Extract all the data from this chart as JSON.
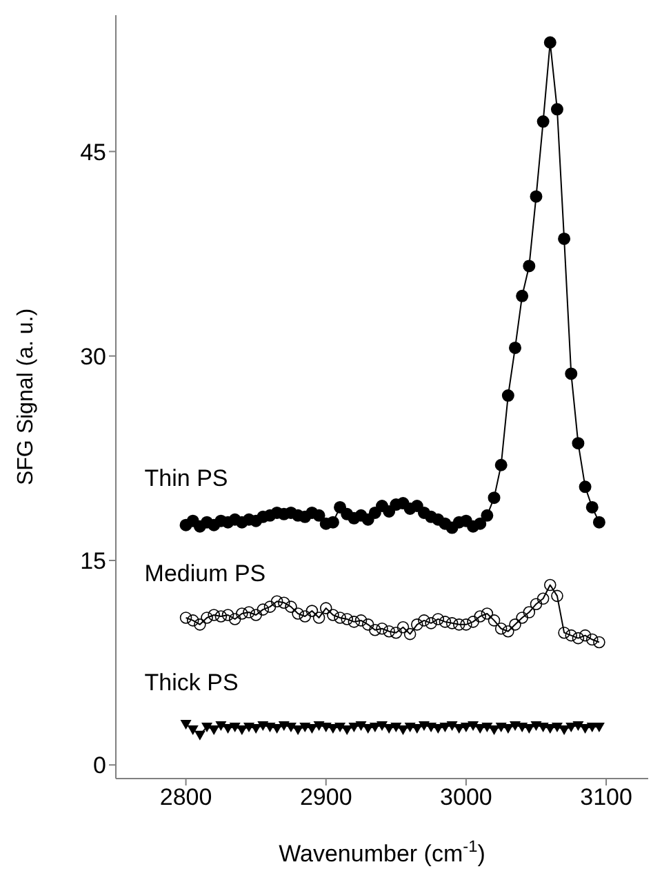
{
  "chart_data": {
    "type": "line",
    "xlabel": "Wavenumber (cm$^{-1}$)",
    "ylabel": "SFG Signal (a. u.)",
    "x": [
      2800,
      2805,
      2810,
      2815,
      2820,
      2825,
      2830,
      2835,
      2840,
      2845,
      2850,
      2855,
      2860,
      2865,
      2870,
      2875,
      2880,
      2885,
      2890,
      2895,
      2900,
      2905,
      2910,
      2915,
      2920,
      2925,
      2930,
      2935,
      2940,
      2945,
      2950,
      2955,
      2960,
      2965,
      2970,
      2975,
      2980,
      2985,
      2990,
      2995,
      3000,
      3005,
      3010,
      3015,
      3020,
      3025,
      3030,
      3035,
      3040,
      3045,
      3050,
      3055,
      3060,
      3065,
      3070,
      3075,
      3080,
      3085,
      3090,
      3095
    ],
    "xlim": [
      2750,
      3130
    ],
    "xticks": [
      2800,
      2900,
      3000,
      3100
    ],
    "ylim": [
      -1,
      55
    ],
    "yticks": [
      0,
      15,
      30,
      45
    ],
    "line_style": "solid",
    "series": [
      {
        "name": "Thin PS",
        "color": "#000000",
        "marker": "circle",
        "values": [
          17.6,
          17.9,
          17.5,
          17.8,
          17.6,
          17.9,
          17.8,
          18.0,
          17.8,
          18.0,
          17.9,
          18.2,
          18.3,
          18.5,
          18.4,
          18.5,
          18.3,
          18.2,
          18.5,
          18.3,
          17.7,
          17.8,
          18.9,
          18.4,
          18.1,
          18.3,
          18.0,
          18.5,
          19.0,
          18.6,
          19.1,
          19.2,
          18.8,
          19.0,
          18.5,
          18.2,
          18.0,
          17.7,
          17.4,
          17.8,
          17.9,
          17.5,
          17.7,
          18.3,
          19.6,
          22.0,
          27.1,
          30.6,
          34.4,
          36.6,
          41.7,
          47.2,
          53.0,
          48.1,
          38.6,
          28.7,
          23.6,
          20.4,
          18.9,
          17.8
        ]
      },
      {
        "name": "Medium PS",
        "color": "#000000",
        "marker": "open circle",
        "values": [
          10.8,
          10.6,
          10.3,
          10.8,
          11.0,
          10.9,
          11.0,
          10.7,
          11.1,
          11.2,
          11.0,
          11.4,
          11.6,
          12.0,
          11.9,
          11.6,
          11.1,
          10.9,
          11.3,
          10.8,
          11.5,
          11.0,
          10.8,
          10.7,
          10.5,
          10.6,
          10.3,
          9.9,
          10.0,
          9.8,
          9.7,
          10.1,
          9.6,
          10.3,
          10.6,
          10.4,
          10.7,
          10.5,
          10.4,
          10.3,
          10.3,
          10.5,
          10.9,
          11.1,
          10.6,
          10.0,
          9.8,
          10.3,
          10.8,
          11.2,
          11.8,
          12.2,
          13.2,
          12.4,
          9.7,
          9.5,
          9.3,
          9.5,
          9.2,
          9.0
        ]
      },
      {
        "name": "Thick PS",
        "color": "#000000",
        "marker": "triangle",
        "values": [
          3.0,
          2.6,
          2.2,
          2.8,
          2.6,
          2.9,
          2.7,
          2.8,
          2.6,
          2.8,
          2.7,
          2.9,
          2.8,
          2.7,
          2.9,
          2.8,
          2.6,
          2.8,
          2.7,
          2.9,
          2.8,
          2.7,
          2.8,
          2.6,
          2.8,
          2.9,
          2.7,
          2.8,
          2.9,
          2.7,
          2.8,
          2.6,
          2.8,
          2.7,
          2.9,
          2.8,
          2.7,
          2.8,
          2.9,
          2.7,
          2.8,
          2.9,
          2.7,
          2.8,
          2.6,
          2.8,
          2.7,
          2.9,
          2.8,
          2.7,
          2.9,
          2.8,
          2.7,
          2.8,
          2.6,
          2.8,
          2.9,
          2.7,
          2.8,
          2.8
        ]
      }
    ]
  }
}
